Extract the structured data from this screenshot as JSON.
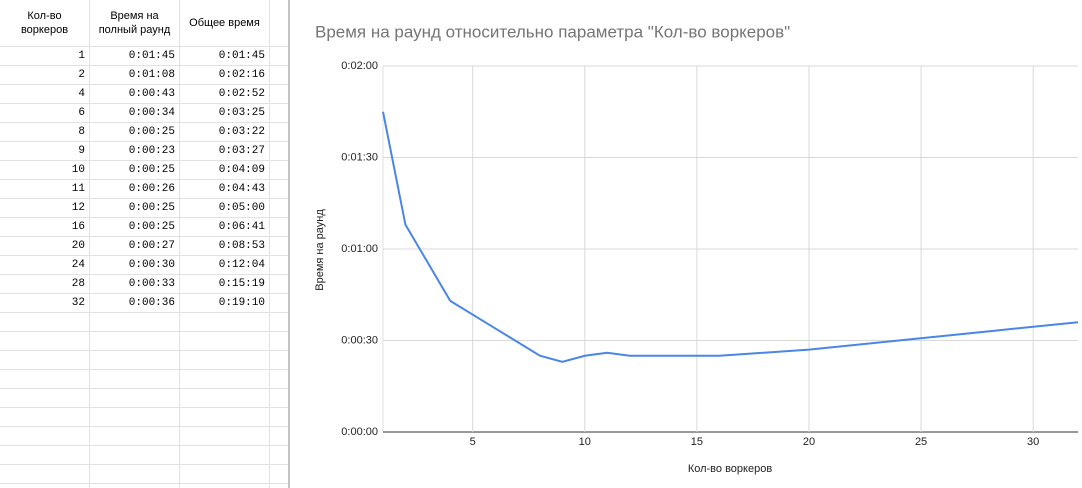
{
  "table": {
    "header": [
      "Кол-во воркеров",
      "Время на полный раунд",
      "Общее время"
    ],
    "rows": [
      [
        "1",
        "0:01:45",
        "0:01:45"
      ],
      [
        "2",
        "0:01:08",
        "0:02:16"
      ],
      [
        "4",
        "0:00:43",
        "0:02:52"
      ],
      [
        "6",
        "0:00:34",
        "0:03:25"
      ],
      [
        "8",
        "0:00:25",
        "0:03:22"
      ],
      [
        "9",
        "0:00:23",
        "0:03:27"
      ],
      [
        "10",
        "0:00:25",
        "0:04:09"
      ],
      [
        "11",
        "0:00:26",
        "0:04:43"
      ],
      [
        "12",
        "0:00:25",
        "0:05:00"
      ],
      [
        "16",
        "0:00:25",
        "0:06:41"
      ],
      [
        "20",
        "0:00:27",
        "0:08:53"
      ],
      [
        "24",
        "0:00:30",
        "0:12:04"
      ],
      [
        "28",
        "0:00:33",
        "0:15:19"
      ],
      [
        "32",
        "0:00:36",
        "0:19:10"
      ]
    ]
  },
  "chart_data": {
    "type": "line",
    "title": "Время на раунд относительно параметра \"Кол-во воркеров\"",
    "x_label": "Кол-во воркеров",
    "y_label": "Время на раунд",
    "x": [
      1,
      2,
      4,
      6,
      8,
      9,
      10,
      11,
      12,
      16,
      20,
      24,
      28,
      32
    ],
    "values": [
      105,
      68,
      43,
      34,
      25,
      23,
      25,
      26,
      25,
      25,
      27,
      30,
      33,
      36
    ],
    "color": "#4a86e8",
    "xlim": [
      1,
      32
    ],
    "xticks": [
      5,
      10,
      15,
      20,
      25,
      30
    ],
    "ylim": [
      0,
      120
    ],
    "yticks": [
      {
        "value": 0,
        "label": "0:00:00"
      },
      {
        "value": 30,
        "label": "0:00:30"
      },
      {
        "value": 60,
        "label": "0:01:00"
      },
      {
        "value": 90,
        "label": "0:01:30"
      },
      {
        "value": 120,
        "label": "0:02:00"
      }
    ],
    "grid": true
  }
}
